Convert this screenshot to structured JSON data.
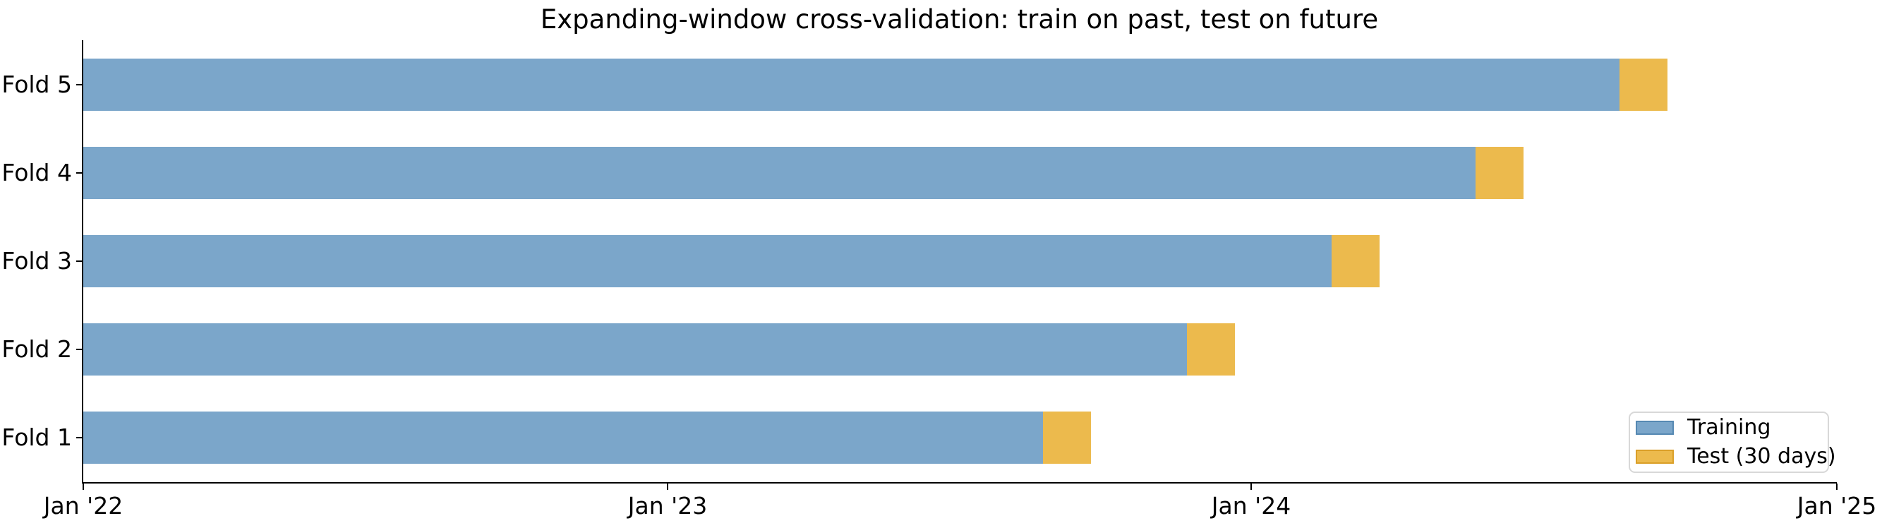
{
  "title": "Expanding-window cross-validation: train on past, test on future",
  "legend": {
    "position": "lower right",
    "items": [
      {
        "label": "Training",
        "series": "train"
      },
      {
        "label": "Test (30 days)",
        "series": "test"
      }
    ]
  },
  "colors": {
    "training_fill": "#7BA6CA",
    "training_edge": "#5588B2",
    "test_fill": "#ECBA4D",
    "test_edge": "#DA9F28",
    "axis": "#000000",
    "text": "#000000",
    "legend_border": "#D8D8D8",
    "background": "#FFFFFF"
  },
  "chart_data": {
    "type": "bar",
    "subtype": "horizontal-stacked-timeline",
    "title": "Expanding-window cross-validation: train on past, test on future",
    "categories_top_to_bottom": [
      "Fold 5",
      "Fold 4",
      "Fold 3",
      "Fold 2",
      "Fold 1"
    ],
    "x_unit": "days since Jan 1 '22",
    "x_range_days": [
      0,
      1096
    ],
    "x_ticks": [
      {
        "day": 0,
        "label": "Jan '22"
      },
      {
        "day": 365,
        "label": "Jan '23"
      },
      {
        "day": 730,
        "label": "Jan '24"
      },
      {
        "day": 1096,
        "label": "Jan '25"
      }
    ],
    "folds": [
      {
        "label": "Fold 5",
        "train_start_day": 0,
        "train_end_day": 960,
        "test_end_day": 990
      },
      {
        "label": "Fold 4",
        "train_start_day": 0,
        "train_end_day": 870,
        "test_end_day": 900
      },
      {
        "label": "Fold 3",
        "train_start_day": 0,
        "train_end_day": 780,
        "test_end_day": 810
      },
      {
        "label": "Fold 2",
        "train_start_day": 0,
        "train_end_day": 690,
        "test_end_day": 720
      },
      {
        "label": "Fold 1",
        "train_start_day": 0,
        "train_end_day": 600,
        "test_end_day": 630
      }
    ],
    "series": [
      {
        "name": "Training",
        "role": "train"
      },
      {
        "name": "Test (30 days)",
        "role": "test",
        "duration_days": 30
      }
    ],
    "grid": false,
    "legend_position": "lower right"
  }
}
